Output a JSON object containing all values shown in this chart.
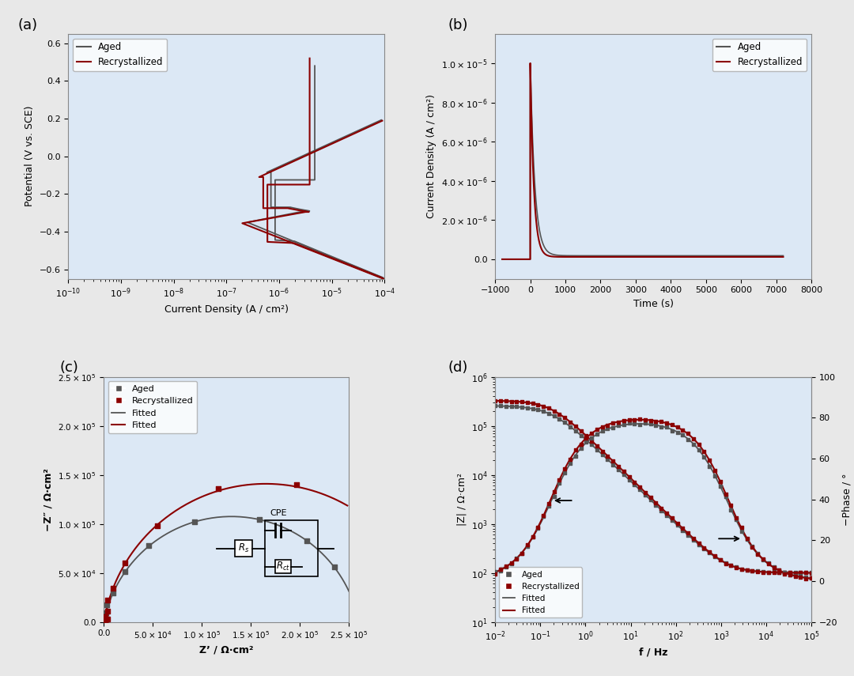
{
  "panel_a": {
    "label": "(a)",
    "xlabel": "Current Density (A / cm²)",
    "ylabel": "Potential (V vs. SCE)",
    "ylim": [
      -0.65,
      0.65
    ],
    "yticks": [
      -0.6,
      -0.4,
      -0.2,
      0.0,
      0.2,
      0.4,
      0.6
    ],
    "bg_color": "#dce8f5"
  },
  "panel_b": {
    "label": "(b)",
    "xlabel": "Time (s)",
    "ylabel": "Current Density (A / cm²)",
    "xlim": [
      -1000,
      8000
    ],
    "xticks": [
      -1000,
      0,
      1000,
      2000,
      3000,
      4000,
      5000,
      6000,
      7000,
      8000
    ],
    "bg_color": "#dce8f5"
  },
  "panel_c": {
    "label": "(c)",
    "xlabel": "Z’ / Ω·cm²",
    "ylabel": "−Z″ / Ω·cm²",
    "xlim": [
      0,
      250000.0
    ],
    "ylim": [
      0,
      250000.0
    ],
    "bg_color": "#dce8f5"
  },
  "panel_d": {
    "label": "(d)",
    "xlabel": "f / Hz",
    "ylabel_left": "|Z| / Ω·cm²",
    "ylabel_right": "−Phase / °",
    "bg_color": "#dce8f5"
  },
  "colors": {
    "aged": "#555555",
    "recrystallized": "#8b0000"
  },
  "legend_aged": "Aged",
  "legend_recryst": "Recrystallized",
  "legend_fitted": "Fitted",
  "fig_bg": "#e8e8e8"
}
